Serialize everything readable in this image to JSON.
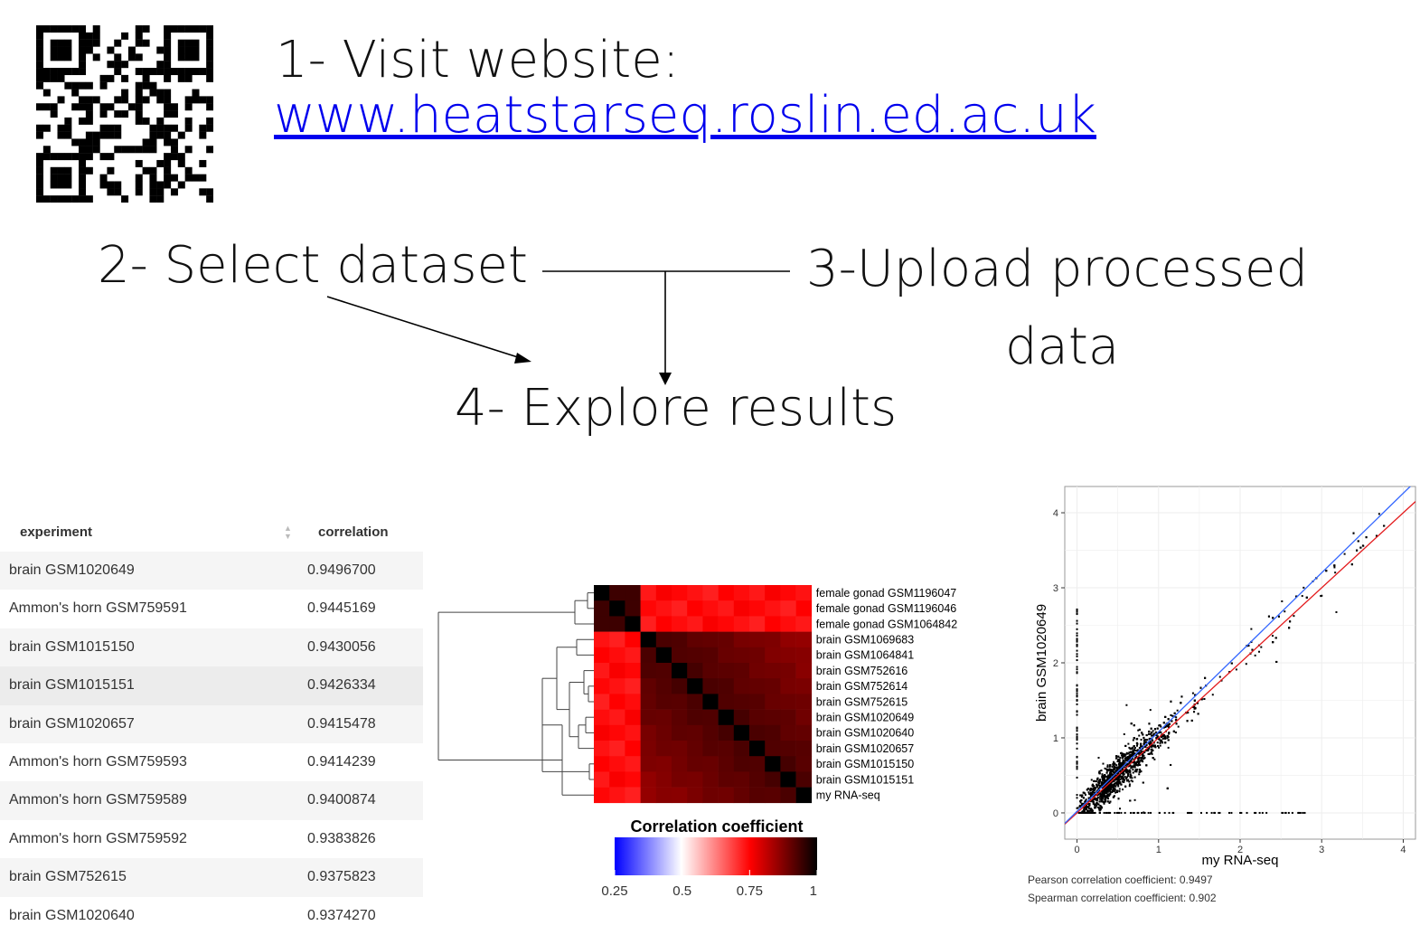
{
  "steps": {
    "step1": "1- Visit website:",
    "website": "www.heatstarseq.roslin.ed.ac.uk",
    "step2": "2- Select dataset",
    "step3_line1": "3-Upload processed",
    "step3_line2": "data",
    "step4": "4- Explore results"
  },
  "table": {
    "headers": [
      "experiment",
      "correlation"
    ],
    "rows": [
      {
        "experiment": "brain GSM1020649",
        "correlation": "0.9496700"
      },
      {
        "experiment": "Ammon's horn GSM759591",
        "correlation": "0.9445169"
      },
      {
        "experiment": "brain GSM1015150",
        "correlation": "0.9430056"
      },
      {
        "experiment": "brain GSM1015151",
        "correlation": "0.9426334"
      },
      {
        "experiment": "brain GSM1020657",
        "correlation": "0.9415478"
      },
      {
        "experiment": "Ammon's horn GSM759593",
        "correlation": "0.9414239"
      },
      {
        "experiment": "Ammon's horn GSM759589",
        "correlation": "0.9400874"
      },
      {
        "experiment": "Ammon's horn GSM759592",
        "correlation": "0.9383826"
      },
      {
        "experiment": "brain GSM752615",
        "correlation": "0.9375823"
      },
      {
        "experiment": "brain GSM1020640",
        "correlation": "0.9374270"
      }
    ]
  },
  "heatmap": {
    "labels": [
      "female gonad GSM1196047",
      "female gonad GSM1196046",
      "female gonad GSM1064842",
      "brain GSM1069683",
      "brain GSM1064841",
      "brain GSM752616",
      "brain GSM752614",
      "brain GSM752615",
      "brain GSM1020649",
      "brain GSM1020640",
      "brain GSM1020657",
      "brain GSM1015150",
      "brain GSM1015151",
      "my RNA-seq"
    ],
    "colorbar_title": "Correlation coefficient",
    "colorbar_ticks": [
      "0.25",
      "0.5",
      "0.75",
      "1"
    ]
  },
  "chart_data": {
    "type": "scatter",
    "xlabel": "my RNA-seq",
    "ylabel": "brain GSM1020649",
    "xticks": [
      "0",
      "1",
      "2",
      "3",
      "4"
    ],
    "yticks": [
      "0",
      "1",
      "2",
      "3",
      "4"
    ],
    "xlim": [
      -0.15,
      4.15
    ],
    "ylim": [
      -0.35,
      4.35
    ],
    "lines": [
      {
        "name": "identity",
        "color": "#e31a1c",
        "slope": 1.0,
        "intercept": 0.0
      },
      {
        "name": "fit",
        "color": "#3366ff",
        "slope": 1.06,
        "intercept": 0.02
      }
    ],
    "pearson": "Pearson correlation coefficient: 0.9497",
    "spearman": "Spearman correlation coefficient: 0.902"
  },
  "colors": {
    "link": "#0000ee",
    "heat_high": "#ff0000",
    "heat_low": "#0000ff"
  }
}
